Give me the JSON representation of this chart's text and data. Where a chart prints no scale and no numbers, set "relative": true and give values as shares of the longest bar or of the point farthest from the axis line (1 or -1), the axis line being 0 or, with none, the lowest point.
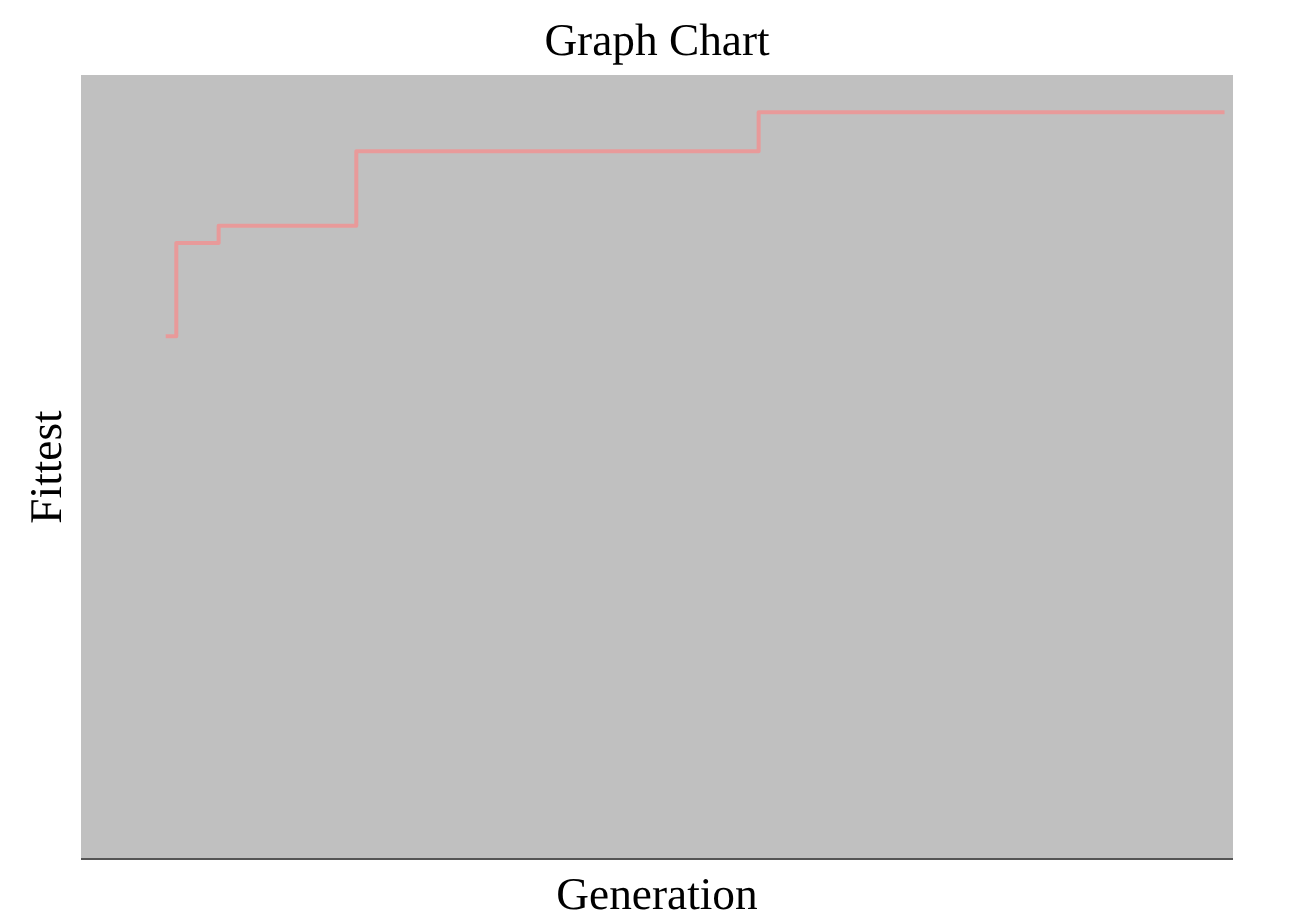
{
  "chart_data": {
    "type": "step",
    "title": "Graph Chart",
    "xlabel": "Generation",
    "ylabel": "Fittest",
    "relative": true,
    "categories": [
      null,
      null,
      null,
      null,
      null,
      null,
      null,
      null,
      null,
      null,
      null,
      null,
      null,
      null,
      null,
      null,
      null,
      null,
      null,
      null,
      null,
      null,
      null,
      null,
      null,
      null,
      null,
      null,
      null,
      null,
      null,
      null,
      null,
      null,
      null,
      null,
      null,
      null,
      null,
      null,
      null,
      null,
      null,
      null,
      null,
      null,
      null,
      null,
      null,
      null,
      null,
      null,
      null,
      null,
      null,
      null,
      null,
      null,
      null,
      null,
      null,
      null,
      null,
      null,
      null,
      null,
      null,
      null,
      null,
      null,
      null,
      null,
      null,
      null,
      null,
      null,
      null,
      null,
      null,
      null,
      null,
      null,
      null,
      null,
      null,
      null,
      null,
      null,
      null,
      null,
      null,
      null,
      null,
      null,
      null,
      null,
      null,
      null,
      null,
      null,
      null
    ],
    "series": [
      {
        "color": "#e89a9a",
        "values": [
          0.7,
          0.825,
          0.825,
          0.825,
          0.825,
          0.848,
          0.848,
          0.848,
          0.848,
          0.848,
          0.848,
          0.848,
          0.848,
          0.848,
          0.848,
          0.848,
          0.848,
          0.848,
          0.948,
          0.948,
          0.948,
          0.948,
          0.948,
          0.948,
          0.948,
          0.948,
          0.948,
          0.948,
          0.948,
          0.948,
          0.948,
          0.948,
          0.948,
          0.948,
          0.948,
          0.948,
          0.948,
          0.948,
          0.948,
          0.948,
          0.948,
          0.948,
          0.948,
          0.948,
          0.948,
          0.948,
          0.948,
          0.948,
          0.948,
          0.948,
          0.948,
          0.948,
          0.948,
          0.948,
          0.948,
          0.948,
          1,
          1,
          1,
          1,
          1,
          1,
          1,
          1,
          1,
          1,
          1,
          1,
          1,
          1,
          1,
          1,
          1,
          1,
          1,
          1,
          1,
          1,
          1,
          1,
          1,
          1,
          1,
          1,
          1,
          1,
          1,
          1,
          1,
          1,
          1,
          1,
          1,
          1,
          1,
          1,
          1,
          1,
          1,
          1,
          1
        ]
      }
    ]
  }
}
